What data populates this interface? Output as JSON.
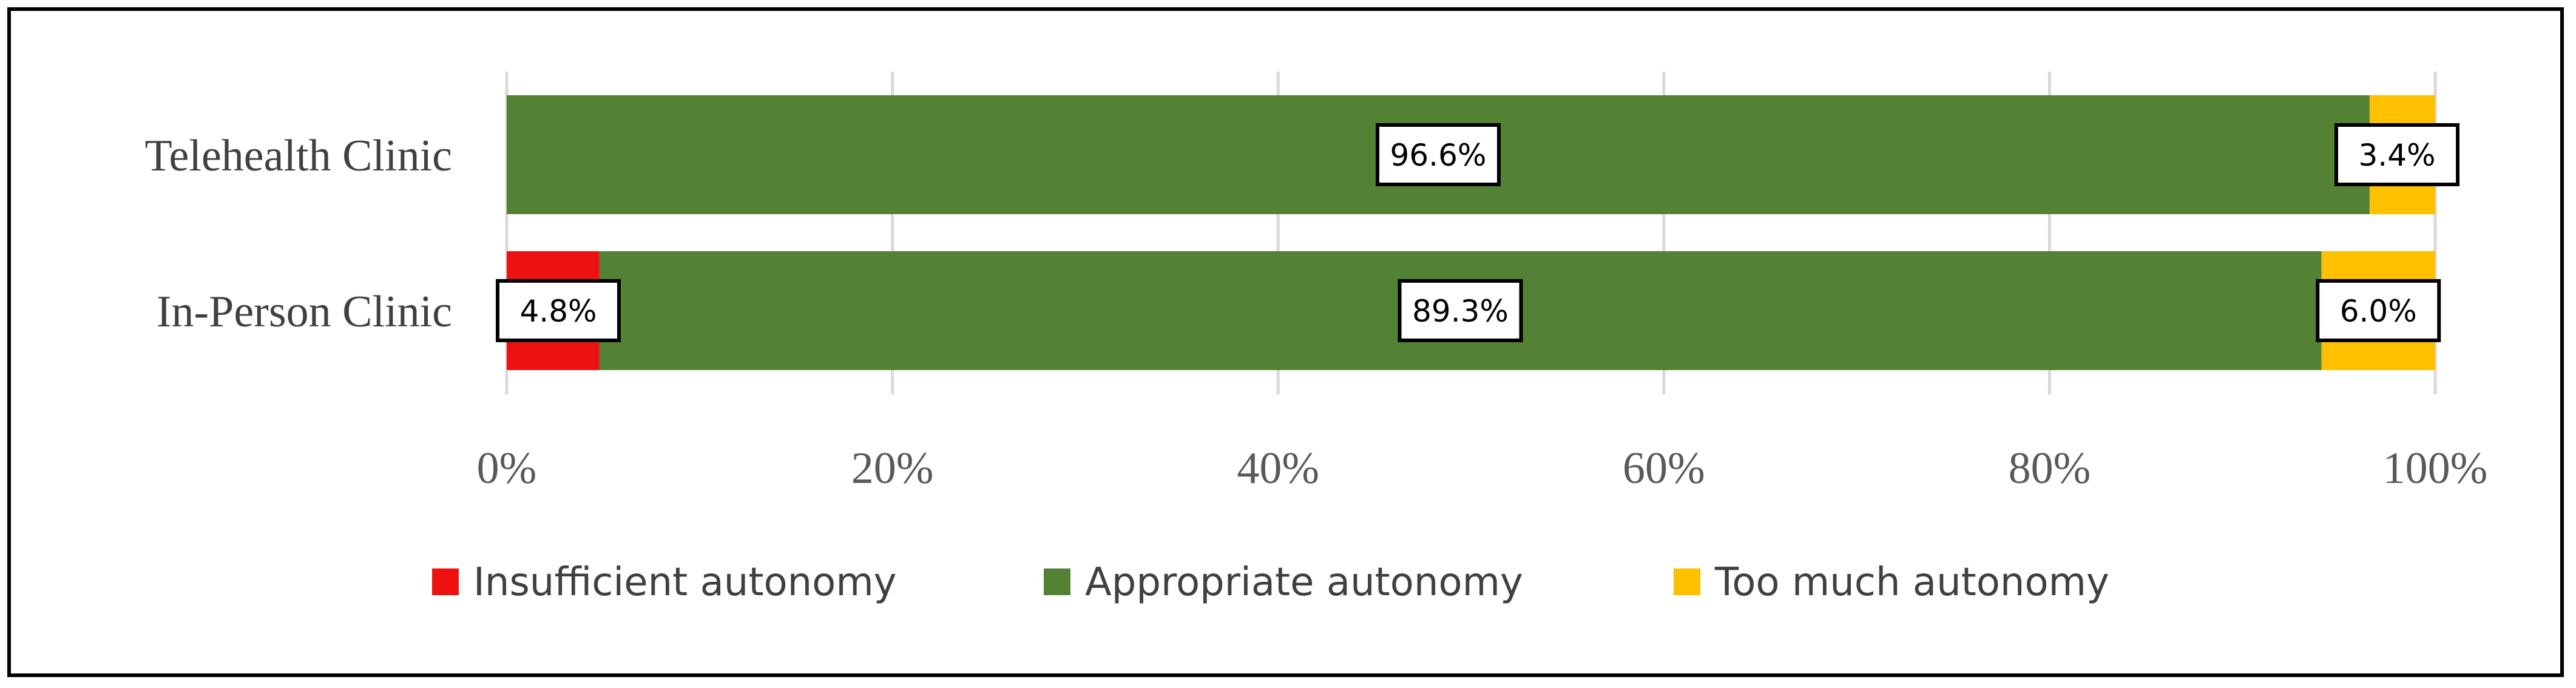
{
  "chart_data": {
    "type": "bar",
    "orientation": "horizontal",
    "stacked": true,
    "categories": [
      "Telehealth Clinic",
      "In-Person Clinic"
    ],
    "series": [
      {
        "name": "Insufficient autonomy",
        "color": "#ee1111",
        "values": [
          0,
          4.8
        ],
        "labels": [
          "",
          "4.8%"
        ]
      },
      {
        "name": "Appropriate autonomy",
        "color": "#548235",
        "values": [
          96.6,
          89.3
        ],
        "labels": [
          "96.6%",
          "89.3%"
        ]
      },
      {
        "name": "Too much autonomy",
        "color": "#ffc000",
        "values": [
          3.4,
          6.0
        ],
        "labels": [
          "3.4%",
          "6.0%"
        ]
      }
    ],
    "xlim": [
      0,
      100
    ],
    "xticks": [
      0,
      20,
      40,
      60,
      80,
      100
    ],
    "xtick_labels": [
      "0%",
      "20%",
      "40%",
      "60%",
      "80%",
      "100%"
    ],
    "grid": true,
    "legend": "bottom"
  }
}
